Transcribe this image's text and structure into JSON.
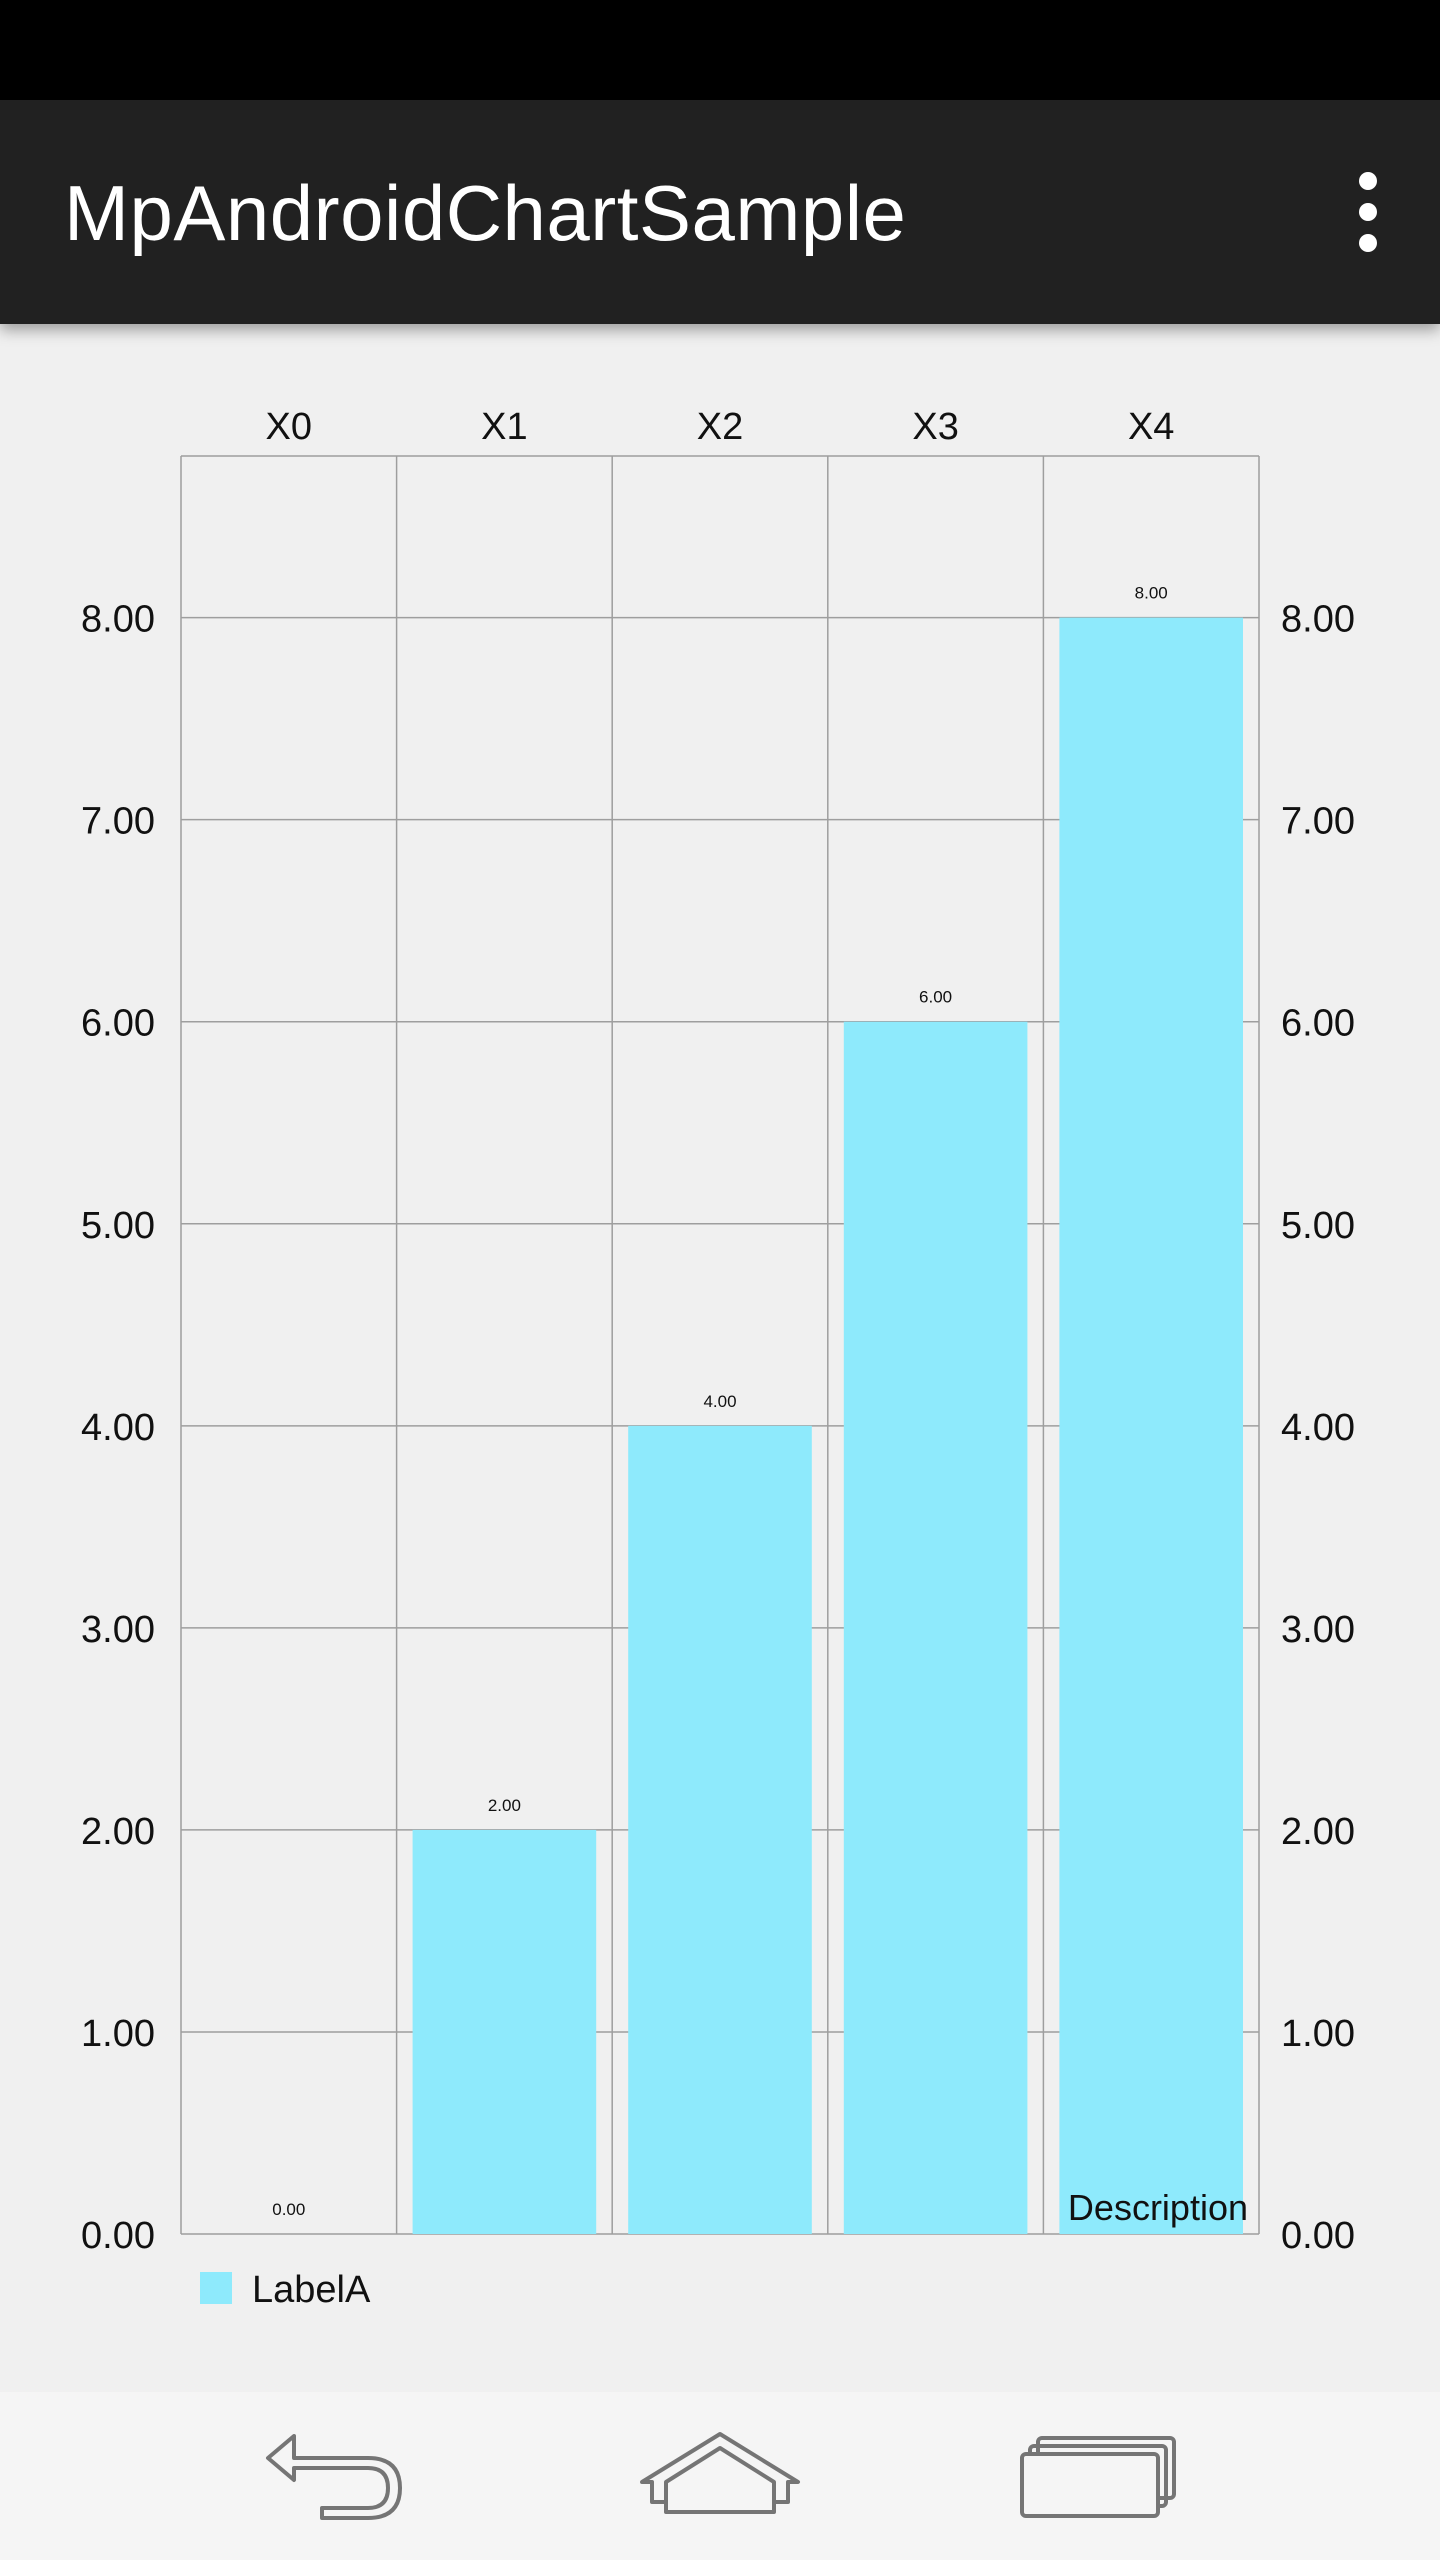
{
  "app": {
    "title": "MpAndroidChartSample",
    "menu_icon": "overflow-menu-icon"
  },
  "nav": {
    "back_icon": "back-icon",
    "home_icon": "home-icon",
    "recents_icon": "recent-apps-icon"
  },
  "colors": {
    "bar": "#8EEAFC",
    "grid": "#9e9e9e",
    "status_bar": "#000000",
    "app_bar": "#212121",
    "chart_bg": "#f0f0f0"
  },
  "chart_data": {
    "type": "bar",
    "categories": [
      "X0",
      "X1",
      "X2",
      "X3",
      "X4"
    ],
    "series": [
      {
        "name": "LabelA",
        "values": [
          0,
          2,
          4,
          6,
          8
        ],
        "labels": [
          "0.00",
          "2.00",
          "4.00",
          "6.00",
          "8.00"
        ]
      }
    ],
    "y_ticks": [
      "0.00",
      "1.00",
      "2.00",
      "3.00",
      "4.00",
      "5.00",
      "6.00",
      "7.00",
      "8.00"
    ],
    "y_tick_values": [
      0,
      1,
      2,
      3,
      4,
      5,
      6,
      7,
      8
    ],
    "ylim": [
      0,
      8.8
    ],
    "x_axis_position": "top",
    "y_axis": "both sides",
    "grid": true,
    "legend": {
      "position": "bottom-left",
      "entries": [
        "LabelA"
      ]
    },
    "description": "Description"
  }
}
